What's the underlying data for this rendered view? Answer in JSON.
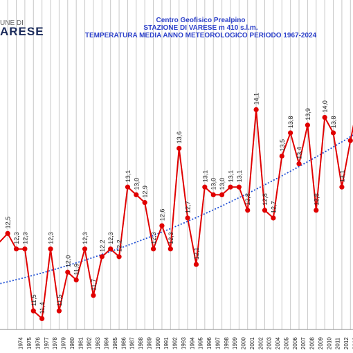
{
  "logo": {
    "top": "UNE DI",
    "main": "ARESE"
  },
  "header": {
    "line1": "Centro Geofisico Prealpino",
    "line2": "STAZIONE DI VARESE m 410 s.l.m.",
    "line3": "TEMPERATURA MEDIA ANNO METEOROLOGICO  PERIODO 1967-2024"
  },
  "colors": {
    "series": "#e00000",
    "trend": "#1f4fd6",
    "grid": "#c8c8c8",
    "title": "#2b3fc9"
  },
  "chart_data": {
    "type": "line",
    "title": "TEMPERATURA MEDIA ANNO METEOROLOGICO  PERIODO 1967-2024",
    "x_tick_labels": [
      "1974",
      "1975",
      "1976",
      "1977",
      "1978",
      "1979",
      "1980",
      "1981",
      "1982",
      "1983",
      "1984",
      "1985",
      "1986",
      "1987",
      "1988",
      "1989",
      "1990",
      "1991",
      "1992",
      "1993",
      "1994",
      "1995",
      "1996",
      "1997",
      "1998",
      "1999",
      "2000",
      "2001",
      "2002",
      "2003",
      "2004",
      "2005",
      "2006",
      "2007",
      "2008",
      "2009",
      "2010",
      "2011",
      "2012",
      "2013"
    ],
    "series": [
      {
        "type": "line",
        "points": [
          {
            "x": 1973,
            "y": 12.5,
            "label": "12,5"
          },
          {
            "x": 1974,
            "y": 12.3,
            "label": "12,3"
          },
          {
            "x": 1975,
            "y": 12.3,
            "label": "12,3"
          },
          {
            "x": 1976,
            "y": 11.5,
            "label": "11,5"
          },
          {
            "x": 1977,
            "y": 11.4,
            "label": "11,4"
          },
          {
            "x": 1978,
            "y": 12.3,
            "label": "12,3"
          },
          {
            "x": 1979,
            "y": 11.5,
            "label": "11,5"
          },
          {
            "x": 1980,
            "y": 12.0,
            "label": "12,0"
          },
          {
            "x": 1981,
            "y": 11.9,
            "label": "11,9"
          },
          {
            "x": 1982,
            "y": 12.3,
            "label": "12,3"
          },
          {
            "x": 1983,
            "y": 11.7,
            "label": "11,7"
          },
          {
            "x": 1984,
            "y": 12.2,
            "label": "12,2"
          },
          {
            "x": 1985,
            "y": 12.3,
            "label": "12,3"
          },
          {
            "x": 1986,
            "y": 12.2,
            "label": "12,2"
          },
          {
            "x": 1987,
            "y": 13.1,
            "label": "13,1"
          },
          {
            "x": 1988,
            "y": 13.0,
            "label": "13,0"
          },
          {
            "x": 1989,
            "y": 12.9,
            "label": "12,9"
          },
          {
            "x": 1990,
            "y": 12.3,
            "label": "12,3"
          },
          {
            "x": 1991,
            "y": 12.6,
            "label": "12,6"
          },
          {
            "x": 1992,
            "y": 12.3,
            "label": "12,3"
          },
          {
            "x": 1993,
            "y": 13.6,
            "label": "13,6"
          },
          {
            "x": 1994,
            "y": 12.7,
            "label": "12,7"
          },
          {
            "x": 1995,
            "y": 12.1,
            "label": "12,1"
          },
          {
            "x": 1996,
            "y": 13.1,
            "label": "13,1"
          },
          {
            "x": 1997,
            "y": 13.0,
            "label": "13,0"
          },
          {
            "x": 1998,
            "y": 13.0,
            "label": "13,0"
          },
          {
            "x": 1999,
            "y": 13.1,
            "label": "13,1"
          },
          {
            "x": 2000,
            "y": 13.1,
            "label": "13,1"
          },
          {
            "x": 2001,
            "y": 12.8,
            "label": "12,8"
          },
          {
            "x": 2002,
            "y": 14.1,
            "label": "14,1"
          },
          {
            "x": 2003,
            "y": 12.8,
            "label": "12,8"
          },
          {
            "x": 2004,
            "y": 12.7,
            "label": "12,7"
          },
          {
            "x": 2005,
            "y": 13.5,
            "label": "13,5"
          },
          {
            "x": 2006,
            "y": 13.8,
            "label": "13,8"
          },
          {
            "x": 2007,
            "y": 13.4,
            "label": "13,4"
          },
          {
            "x": 2008,
            "y": 13.9,
            "label": "13,9"
          },
          {
            "x": 2009,
            "y": 12.8,
            "label": "12,8"
          },
          {
            "x": 2010,
            "y": 14.0,
            "label": "14,0"
          },
          {
            "x": 2011,
            "y": 13.8,
            "label": "13,8"
          },
          {
            "x": 2012,
            "y": 13.1,
            "label": "13,1"
          },
          {
            "x": 2013,
            "y": 13.7,
            "label": ""
          }
        ]
      }
    ],
    "trend": {
      "type": "polynomial",
      "style": "dotted",
      "y_at_1972": 11.85,
      "y_at_2013": 13.75
    },
    "x_range": [
      1972.1,
      2013.3
    ],
    "y_range": [
      11.26,
      14.98
    ],
    "grid": "vertical"
  }
}
